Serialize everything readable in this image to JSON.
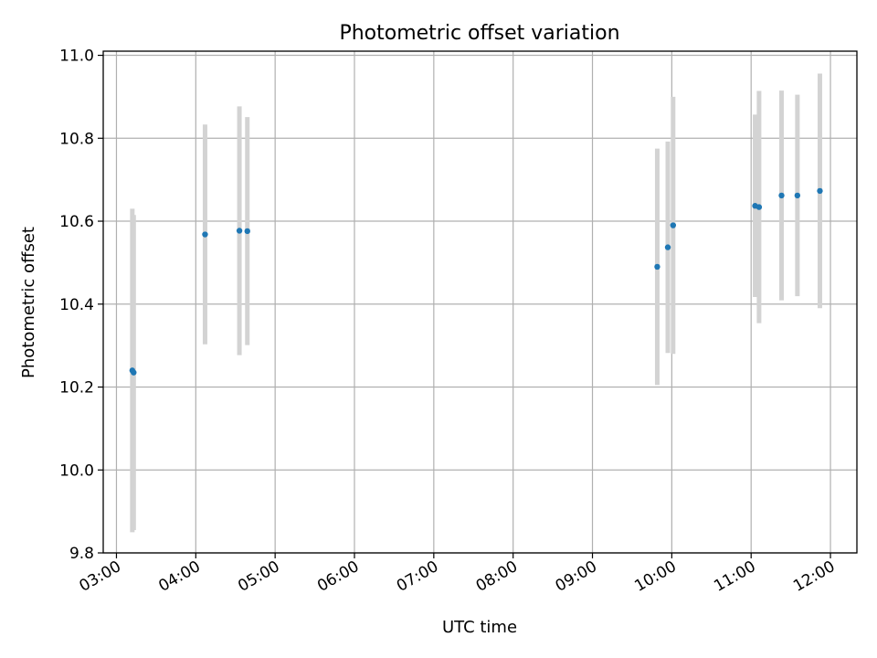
{
  "chart_data": {
    "type": "scatter",
    "title": "Photometric offset variation",
    "xlabel": "UTC time",
    "ylabel": "Photometric offset",
    "x_ticks": [
      "03:00",
      "04:00",
      "05:00",
      "06:00",
      "07:00",
      "08:00",
      "09:00",
      "10:00",
      "11:00",
      "12:00"
    ],
    "y_ticks": [
      "9.8",
      "10.0",
      "10.2",
      "10.4",
      "10.6",
      "10.8",
      "11.0"
    ],
    "xlim": [
      "02:50",
      "12:20"
    ],
    "ylim": [
      9.8,
      11.01
    ],
    "grid": true,
    "colors": {
      "point": "#1f77b4",
      "errorbar": "#d3d3d3",
      "grid": "#b0b0b0"
    },
    "points": [
      {
        "x": "03:12",
        "y": 10.24,
        "yerr": 0.39
      },
      {
        "x": "03:13",
        "y": 10.235,
        "yerr": 0.38
      },
      {
        "x": "04:07",
        "y": 10.568,
        "yerr": 0.265
      },
      {
        "x": "04:33",
        "y": 10.577,
        "yerr": 0.3
      },
      {
        "x": "04:39",
        "y": 10.576,
        "yerr": 0.275
      },
      {
        "x": "09:49",
        "y": 10.49,
        "yerr": 0.285
      },
      {
        "x": "09:57",
        "y": 10.537,
        "yerr": 0.255
      },
      {
        "x": "10:01",
        "y": 10.59,
        "yerr": 0.31
      },
      {
        "x": "11:03",
        "y": 10.637,
        "yerr": 0.22
      },
      {
        "x": "11:06",
        "y": 10.634,
        "yerr": 0.28
      },
      {
        "x": "11:23",
        "y": 10.662,
        "yerr": 0.253
      },
      {
        "x": "11:35",
        "y": 10.662,
        "yerr": 0.243
      },
      {
        "x": "11:52",
        "y": 10.673,
        "yerr": 0.283
      }
    ]
  }
}
